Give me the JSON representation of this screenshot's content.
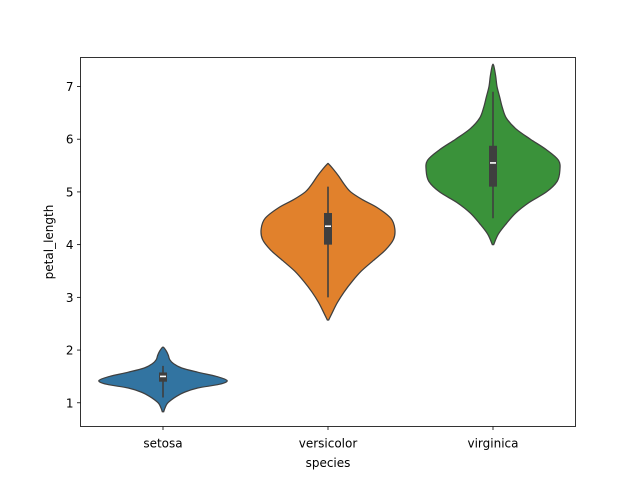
{
  "chart_data": {
    "type": "violin",
    "title": "",
    "xlabel": "species",
    "ylabel": "petal_length",
    "ylim": [
      0.55,
      7.55
    ],
    "yticks": [
      1,
      2,
      3,
      4,
      5,
      6,
      7
    ],
    "grid": false,
    "legend": "none",
    "categories": [
      "setosa",
      "versicolor",
      "virginica"
    ],
    "series": [
      {
        "category": "setosa",
        "color": "#3274a1",
        "profile": [
          [
            0.83,
            0.005
          ],
          [
            0.9,
            0.015
          ],
          [
            0.98,
            0.03
          ],
          [
            1.05,
            0.06
          ],
          [
            1.12,
            0.1
          ],
          [
            1.2,
            0.16
          ],
          [
            1.28,
            0.26
          ],
          [
            1.35,
            0.42
          ],
          [
            1.42,
            0.48
          ],
          [
            1.5,
            0.4
          ],
          [
            1.58,
            0.26
          ],
          [
            1.66,
            0.14
          ],
          [
            1.74,
            0.08
          ],
          [
            1.82,
            0.05
          ],
          [
            1.9,
            0.04
          ],
          [
            1.98,
            0.025
          ],
          [
            2.05,
            0.005
          ]
        ],
        "whisker": [
          1.1,
          1.7
        ],
        "q1": 1.4,
        "q3": 1.575,
        "median": 1.5
      },
      {
        "category": "versicolor",
        "color": "#e1812c",
        "profile": [
          [
            2.57,
            0.005
          ],
          [
            2.7,
            0.03
          ],
          [
            2.9,
            0.07
          ],
          [
            3.1,
            0.12
          ],
          [
            3.3,
            0.18
          ],
          [
            3.5,
            0.25
          ],
          [
            3.7,
            0.34
          ],
          [
            3.9,
            0.43
          ],
          [
            4.1,
            0.49
          ],
          [
            4.3,
            0.5
          ],
          [
            4.5,
            0.47
          ],
          [
            4.7,
            0.37
          ],
          [
            4.85,
            0.26
          ],
          [
            5.0,
            0.17
          ],
          [
            5.15,
            0.12
          ],
          [
            5.3,
            0.08
          ],
          [
            5.43,
            0.04
          ],
          [
            5.53,
            0.005
          ]
        ],
        "whisker": [
          3.0,
          5.1
        ],
        "q1": 4.0,
        "q3": 4.6,
        "median": 4.35
      },
      {
        "category": "virginica",
        "color": "#3a923a",
        "profile": [
          [
            4.0,
            0.005
          ],
          [
            4.2,
            0.04
          ],
          [
            4.4,
            0.1
          ],
          [
            4.6,
            0.17
          ],
          [
            4.8,
            0.27
          ],
          [
            5.0,
            0.4
          ],
          [
            5.2,
            0.48
          ],
          [
            5.4,
            0.5
          ],
          [
            5.6,
            0.49
          ],
          [
            5.8,
            0.4
          ],
          [
            6.0,
            0.28
          ],
          [
            6.2,
            0.17
          ],
          [
            6.4,
            0.1
          ],
          [
            6.6,
            0.07
          ],
          [
            6.8,
            0.05
          ],
          [
            7.0,
            0.03
          ],
          [
            7.2,
            0.02
          ],
          [
            7.4,
            0.005
          ]
        ],
        "whisker": [
          4.5,
          6.9
        ],
        "q1": 5.1,
        "q3": 5.875,
        "median": 5.55
      }
    ]
  }
}
